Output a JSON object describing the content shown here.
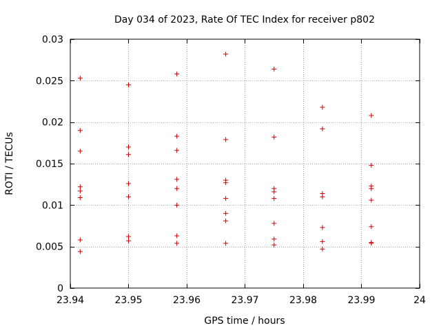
{
  "chart_data": {
    "type": "scatter",
    "title": "Day 034 of 2023, Rate Of TEC Index for receiver p802",
    "xlabel": "GPS time / hours",
    "ylabel": "ROTI / TECUs",
    "xlim": [
      23.94,
      24.0
    ],
    "ylim": [
      0,
      0.03
    ],
    "x_ticks": [
      23.94,
      23.95,
      23.96,
      23.97,
      23.98,
      23.99,
      24.0
    ],
    "x_tick_labels": [
      "23.94",
      "23.95",
      "23.96",
      "23.97",
      "23.98",
      "23.99",
      "24"
    ],
    "y_ticks": [
      0,
      0.005,
      0.01,
      0.015,
      0.02,
      0.025,
      0.03
    ],
    "y_tick_labels": [
      "0",
      "0.005",
      "0.01",
      "0.015",
      "0.02",
      "0.025",
      "0.03"
    ],
    "grid": true,
    "marker": "+",
    "marker_color": "#cc0000",
    "grid_color": "#a0a0a0",
    "series": [
      {
        "name": "ROTI",
        "points": [
          [
            23.9417,
            0.0253
          ],
          [
            23.9417,
            0.019
          ],
          [
            23.9417,
            0.0165
          ],
          [
            23.9417,
            0.0122
          ],
          [
            23.9417,
            0.0117
          ],
          [
            23.9417,
            0.0109
          ],
          [
            23.9417,
            0.0058
          ],
          [
            23.9417,
            0.0044
          ],
          [
            23.95,
            0.0245
          ],
          [
            23.95,
            0.017
          ],
          [
            23.95,
            0.0161
          ],
          [
            23.95,
            0.0126
          ],
          [
            23.95,
            0.011
          ],
          [
            23.95,
            0.0062
          ],
          [
            23.95,
            0.0057
          ],
          [
            23.9583,
            0.0258
          ],
          [
            23.9583,
            0.0183
          ],
          [
            23.9583,
            0.0166
          ],
          [
            23.9583,
            0.0131
          ],
          [
            23.9583,
            0.012
          ],
          [
            23.9583,
            0.01
          ],
          [
            23.9583,
            0.0063
          ],
          [
            23.9583,
            0.0054
          ],
          [
            23.9667,
            0.0282
          ],
          [
            23.9667,
            0.0179
          ],
          [
            23.9667,
            0.013
          ],
          [
            23.9667,
            0.0127
          ],
          [
            23.9667,
            0.0108
          ],
          [
            23.9667,
            0.009
          ],
          [
            23.9667,
            0.0081
          ],
          [
            23.9667,
            0.0054
          ],
          [
            23.975,
            0.0264
          ],
          [
            23.975,
            0.0182
          ],
          [
            23.975,
            0.012
          ],
          [
            23.975,
            0.0116
          ],
          [
            23.975,
            0.0108
          ],
          [
            23.975,
            0.0078
          ],
          [
            23.975,
            0.0059
          ],
          [
            23.975,
            0.0052
          ],
          [
            23.9833,
            0.0218
          ],
          [
            23.9833,
            0.0192
          ],
          [
            23.9833,
            0.0114
          ],
          [
            23.9833,
            0.011
          ],
          [
            23.9833,
            0.0073
          ],
          [
            23.9833,
            0.0056
          ],
          [
            23.9833,
            0.0047
          ],
          [
            23.9917,
            0.0208
          ],
          [
            23.9917,
            0.0148
          ],
          [
            23.9917,
            0.0123
          ],
          [
            23.9917,
            0.012
          ],
          [
            23.9917,
            0.0106
          ],
          [
            23.9917,
            0.0074
          ],
          [
            23.9917,
            0.0055
          ],
          [
            23.9917,
            0.0054
          ]
        ]
      }
    ]
  }
}
